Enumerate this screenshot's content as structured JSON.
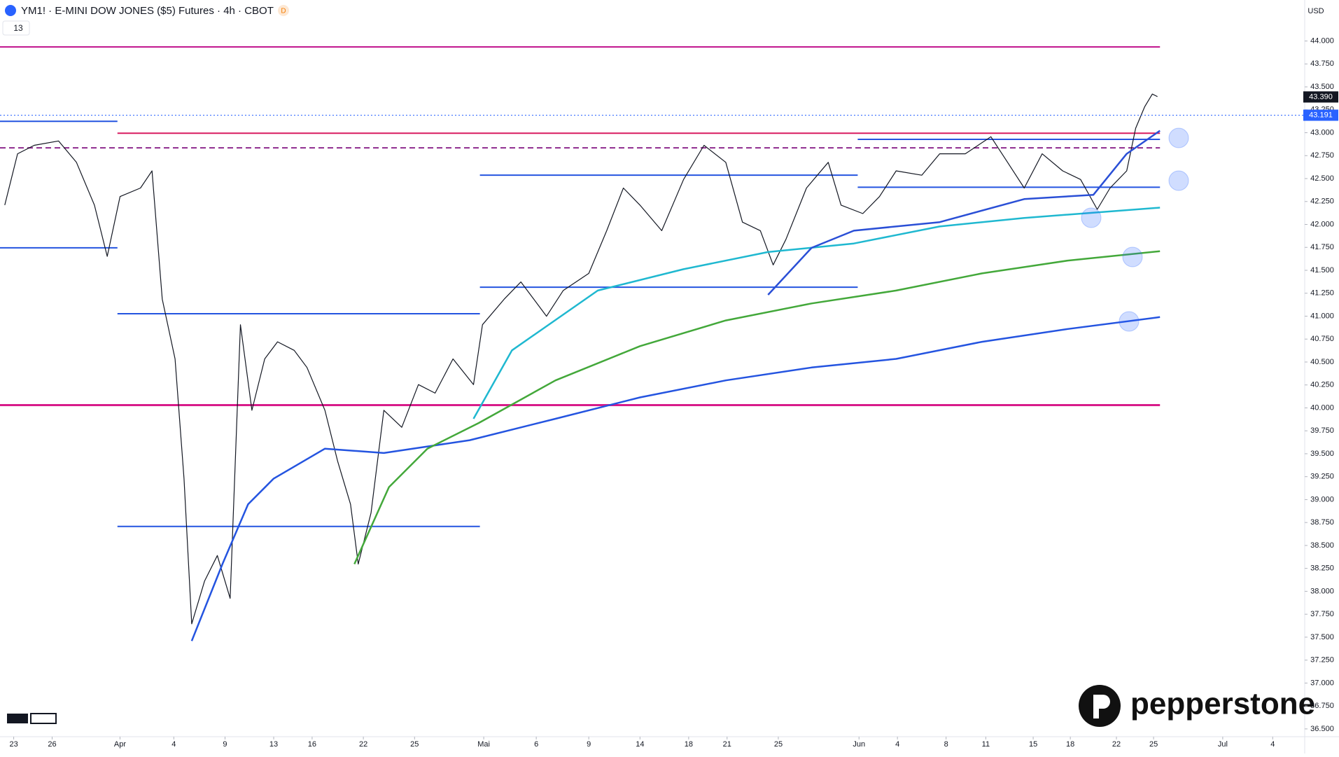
{
  "chart_data": {
    "type": "line",
    "title": "YM1! · E-MINI DOW JONES ($5) Futures · 4h · CBOT",
    "badge": "D",
    "indicator_count": "13",
    "currency": "USD",
    "brand": "pepperstone",
    "xlim": [
      -1.07,
      100.8
    ],
    "ylim": [
      36415,
      44447
    ],
    "xticks": [
      {
        "value": 0,
        "label": "23"
      },
      {
        "value": 3,
        "label": "26"
      },
      {
        "value": 8.3,
        "label": "Apr"
      },
      {
        "value": 12.5,
        "label": "4"
      },
      {
        "value": 16.5,
        "label": "9"
      },
      {
        "value": 20.3,
        "label": "13"
      },
      {
        "value": 23.3,
        "label": "16"
      },
      {
        "value": 27.3,
        "label": "22"
      },
      {
        "value": 31.3,
        "label": "25"
      },
      {
        "value": 36.7,
        "label": "Mai"
      },
      {
        "value": 40.8,
        "label": "6"
      },
      {
        "value": 44.9,
        "label": "9"
      },
      {
        "value": 48.9,
        "label": "14"
      },
      {
        "value": 52.7,
        "label": "18"
      },
      {
        "value": 55.7,
        "label": "21"
      },
      {
        "value": 59.7,
        "label": "25"
      },
      {
        "value": 66,
        "label": "Jun"
      },
      {
        "value": 69,
        "label": "4"
      },
      {
        "value": 72.8,
        "label": "8"
      },
      {
        "value": 75.9,
        "label": "11"
      },
      {
        "value": 79.6,
        "label": "15"
      },
      {
        "value": 82.5,
        "label": "18"
      },
      {
        "value": 86.1,
        "label": "22"
      },
      {
        "value": 89,
        "label": "25"
      },
      {
        "value": 94.4,
        "label": "Jul"
      },
      {
        "value": 98.3,
        "label": "4"
      }
    ],
    "yticks": [
      {
        "value": 36500,
        "label": "36.500"
      },
      {
        "value": 36750,
        "label": "36.750"
      },
      {
        "value": 37000,
        "label": "37.000"
      },
      {
        "value": 37250,
        "label": "37.250"
      },
      {
        "value": 37500,
        "label": "37.500"
      },
      {
        "value": 37750,
        "label": "37.750"
      },
      {
        "value": 38000,
        "label": "38.000"
      },
      {
        "value": 38250,
        "label": "38.250"
      },
      {
        "value": 38500,
        "label": "38.500"
      },
      {
        "value": 38750,
        "label": "38.750"
      },
      {
        "value": 39000,
        "label": "39.000"
      },
      {
        "value": 39250,
        "label": "39.250"
      },
      {
        "value": 39500,
        "label": "39.500"
      },
      {
        "value": 39750,
        "label": "39.750"
      },
      {
        "value": 40000,
        "label": "40.000"
      },
      {
        "value": 40250,
        "label": "40.250"
      },
      {
        "value": 40500,
        "label": "40.500"
      },
      {
        "value": 40750,
        "label": "40.750"
      },
      {
        "value": 41000,
        "label": "41.000"
      },
      {
        "value": 41250,
        "label": "41.250"
      },
      {
        "value": 41500,
        "label": "41.500"
      },
      {
        "value": 41750,
        "label": "41.750"
      },
      {
        "value": 42000,
        "label": "42.000"
      },
      {
        "value": 42250,
        "label": "42.250"
      },
      {
        "value": 42500,
        "label": "42.500"
      },
      {
        "value": 42750,
        "label": "42.750"
      },
      {
        "value": 43000,
        "label": "43.000"
      },
      {
        "value": 43250,
        "label": "43.250"
      },
      {
        "value": 43500,
        "label": "43.500"
      },
      {
        "value": 43750,
        "label": "43.750"
      },
      {
        "value": 44000,
        "label": "44.000"
      }
    ],
    "series": [
      {
        "color": "#131722",
        "width": 1.2,
        "x": [
          -0.7,
          0.3,
          1.6,
          3.5,
          4.9,
          6.3,
          7.3,
          8.3,
          9.9,
          10.8,
          11.6,
          12.6,
          13.3,
          13.9,
          14.9,
          15.9,
          16.9,
          17.7,
          18.6,
          19.6,
          20.6,
          21.9,
          22.9,
          24.3,
          25.3,
          26.3,
          26.9,
          27.9,
          28.9,
          30.3,
          31.6,
          32.9,
          34.3,
          35.9,
          36.6,
          38.3,
          39.6,
          41.6,
          42.9,
          44.9,
          46.3,
          47.6,
          48.9,
          50.6,
          52.3,
          53.9,
          55.6,
          56.9,
          58.3,
          59.3,
          60.3,
          61.9,
          63.6,
          64.6,
          66.3,
          67.6,
          68.9,
          70.9,
          72.3,
          74.3,
          76.3,
          77.6,
          78.9,
          80.3,
          81.9,
          83.3,
          84.6,
          85.6,
          86.9,
          87.6,
          88.3,
          88.9,
          89.3
        ],
        "values": [
          42211,
          42770,
          42863,
          42910,
          42677,
          42211,
          41652,
          42304,
          42397,
          42584,
          41186,
          40534,
          39229,
          37645,
          38111,
          38390,
          37924,
          40907,
          39974,
          40534,
          40720,
          40627,
          40440,
          39974,
          39415,
          38949,
          38297,
          38856,
          39974,
          39788,
          40254,
          40161,
          40534,
          40254,
          40907,
          41186,
          41373,
          40999,
          41279,
          41466,
          41932,
          42397,
          42211,
          41932,
          42490,
          42863,
          42677,
          42025,
          41932,
          41559,
          41838,
          42397,
          42677,
          42211,
          42118,
          42304,
          42584,
          42537,
          42770,
          42770,
          42956,
          42677,
          42397,
          42770,
          42584,
          42490,
          42164,
          42397,
          42584,
          43049,
          43282,
          43422,
          43394
        ]
      },
      {
        "color": "#2454e0",
        "width": 2.5,
        "x": [
          13.9,
          16.3,
          18.3,
          20.3,
          24.3,
          28.9,
          35.6,
          42.3,
          48.9,
          55.6,
          62.3,
          68.9,
          75.6,
          82.3,
          89.5
        ],
        "values": [
          37459,
          38297,
          38949,
          39229,
          39555,
          39508,
          39648,
          39881,
          40114,
          40300,
          40440,
          40534,
          40720,
          40860,
          40990
        ]
      },
      {
        "color": "#43a83a",
        "width": 2.5,
        "x": [
          26.6,
          29.3,
          32.3,
          36.3,
          42.3,
          48.9,
          55.6,
          62.3,
          68.9,
          75.6,
          82.3,
          89.5
        ],
        "values": [
          38297,
          39136,
          39555,
          39835,
          40300,
          40673,
          40953,
          41139,
          41279,
          41466,
          41606,
          41708
        ]
      },
      {
        "color": "#1fb8d0",
        "width": 2.5,
        "x": [
          35.9,
          38.9,
          45.6,
          52.3,
          58.9,
          65.6,
          72.3,
          78.9,
          89.5
        ],
        "values": [
          39881,
          40627,
          41279,
          41512,
          41699,
          41792,
          41978,
          42071,
          42183
        ]
      },
      {
        "color": "#2a4fd6",
        "width": 2.5,
        "x": [
          58.9,
          62.3,
          65.6,
          72.3,
          78.9,
          84.3,
          86.9,
          89.5
        ],
        "values": [
          41233,
          41745,
          41932,
          42025,
          42276,
          42323,
          42770,
          43022
        ]
      }
    ],
    "levels": [
      {
        "price": 43935,
        "x0": -1.07,
        "x1": 89.5,
        "color": "#c2188f",
        "dash": false
      },
      {
        "price": 42994,
        "x0": 8.1,
        "x1": 89.5,
        "color": "#d81b60",
        "dash": false
      },
      {
        "price": 40030,
        "x0": -1.07,
        "x1": 89.5,
        "color": "#d81b8a",
        "dash": false
      },
      {
        "price": 42835,
        "x0": -1.07,
        "x1": 89.5,
        "color": "#8e2b8e",
        "dash": true
      },
      {
        "price": 43124,
        "x0": -1.07,
        "x1": 8.1,
        "color": "#2454e0",
        "dash": false
      },
      {
        "price": 41745,
        "x0": -1.07,
        "x1": 8.1,
        "color": "#2454e0",
        "dash": false
      },
      {
        "price": 41027,
        "x0": 8.1,
        "x1": 36.4,
        "color": "#2454e0",
        "dash": false
      },
      {
        "price": 38707,
        "x0": 8.1,
        "x1": 36.4,
        "color": "#2454e0",
        "dash": false
      },
      {
        "price": 42537,
        "x0": 36.4,
        "x1": 65.9,
        "color": "#2454e0",
        "dash": false
      },
      {
        "price": 41316,
        "x0": 36.4,
        "x1": 65.9,
        "color": "#2454e0",
        "dash": false
      },
      {
        "price": 42928,
        "x0": 65.9,
        "x1": 89.5,
        "color": "#2454e0",
        "dash": false
      },
      {
        "price": 42406,
        "x0": 65.9,
        "x1": 89.5,
        "color": "#2454e0",
        "dash": false
      }
    ],
    "last_price": {
      "value": 43390,
      "label": "43.390"
    },
    "prev_close": {
      "value": 43191,
      "label": "43.191"
    }
  }
}
